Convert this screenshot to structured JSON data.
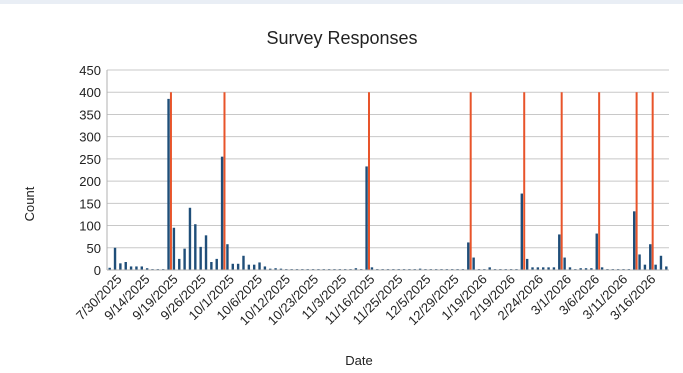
{
  "chart_data": {
    "type": "bar",
    "title": "Survey Responses",
    "xlabel": "Date",
    "ylabel": "Count",
    "ylim": [
      0,
      450
    ],
    "y_ticks": [
      0,
      50,
      100,
      150,
      200,
      250,
      300,
      350,
      400,
      450
    ],
    "x_tick_labels": [
      "7/30/2025",
      "9/14/2025",
      "9/19/2025",
      "9/26/2025",
      "10/1/2025",
      "10/6/2025",
      "10/12/2025",
      "10/23/2025",
      "11/3/2025",
      "11/16/2025",
      "11/25/2025",
      "12/5/2025",
      "12/29/2025",
      "1/19/2026",
      "2/19/2026",
      "2/24/2026",
      "3/1/2026",
      "3/6/2026",
      "3/11/2026",
      "3/16/2026"
    ],
    "grid": true,
    "bar_color": "#1f4e79",
    "marker_color": "#e8542a",
    "values": [
      5,
      50,
      15,
      18,
      8,
      8,
      8,
      4,
      2,
      2,
      2,
      385,
      95,
      25,
      48,
      140,
      103,
      52,
      78,
      18,
      25,
      255,
      58,
      14,
      14,
      32,
      12,
      12,
      17,
      8,
      3,
      4,
      3,
      2,
      2,
      2,
      2,
      2,
      2,
      2,
      2,
      2,
      2,
      2,
      2,
      2,
      4,
      2,
      233,
      6,
      2,
      2,
      2,
      2,
      2,
      2,
      2,
      2,
      3,
      2,
      2,
      2,
      2,
      2,
      2,
      2,
      2,
      62,
      28,
      2,
      2,
      6,
      2,
      2,
      2,
      2,
      2,
      172,
      25,
      6,
      6,
      6,
      6,
      6,
      80,
      28,
      6,
      2,
      4,
      4,
      4,
      82,
      6,
      2,
      2,
      2,
      2,
      2,
      132,
      35,
      12,
      58,
      12,
      32,
      8
    ],
    "highlight_bar_indices": [
      11,
      21,
      48,
      67,
      77,
      84,
      91,
      98,
      101
    ],
    "highlight_value": 400
  }
}
